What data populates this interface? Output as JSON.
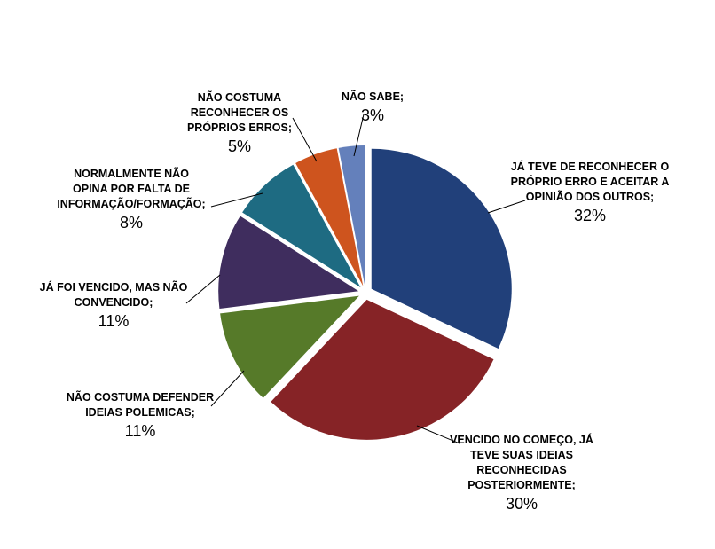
{
  "chart_data": {
    "type": "pie",
    "title": "",
    "legend": "none",
    "slices": [
      {
        "label_lines": [
          "JÁ TEVE DE RECONHECER O",
          "PRÓPRIO ERRO E ACEITAR A",
          "OPINIÃO DOS OUTROS;"
        ],
        "value": 32,
        "pct_label": "32%",
        "color": "#21407A"
      },
      {
        "label_lines": [
          "VENCIDO NO COMEÇO, JÁ",
          "TEVE SUAS IDEIAS",
          "RECONHECIDAS",
          "POSTERIORMENTE;"
        ],
        "value": 30,
        "pct_label": "30%",
        "color": "#862326"
      },
      {
        "label_lines": [
          "NÃO COSTUMA DEFENDER",
          "IDEIAS POLEMICAS;"
        ],
        "value": 11,
        "pct_label": "11%",
        "color": "#567A29"
      },
      {
        "label_lines": [
          "JÁ FOI VENCIDO, MAS NÃO",
          "CONVENCIDO;"
        ],
        "value": 11,
        "pct_label": "11%",
        "color": "#3F2D5E"
      },
      {
        "label_lines": [
          "NORMALMENTE NÃO",
          "OPINA POR FALTA DE",
          "INFORMAÇÃO/FORMAÇÃO;"
        ],
        "value": 8,
        "pct_label": "8%",
        "color": "#1E6B82"
      },
      {
        "label_lines": [
          "NÃO COSTUMA",
          "RECONHECER OS",
          "PRÓPRIOS ERROS;"
        ],
        "value": 5,
        "pct_label": "5%",
        "color": "#CE541E"
      },
      {
        "label_lines": [
          "NÃO SABE;"
        ],
        "value": 3,
        "pct_label": "3%",
        "color": "#6480BB"
      }
    ]
  }
}
